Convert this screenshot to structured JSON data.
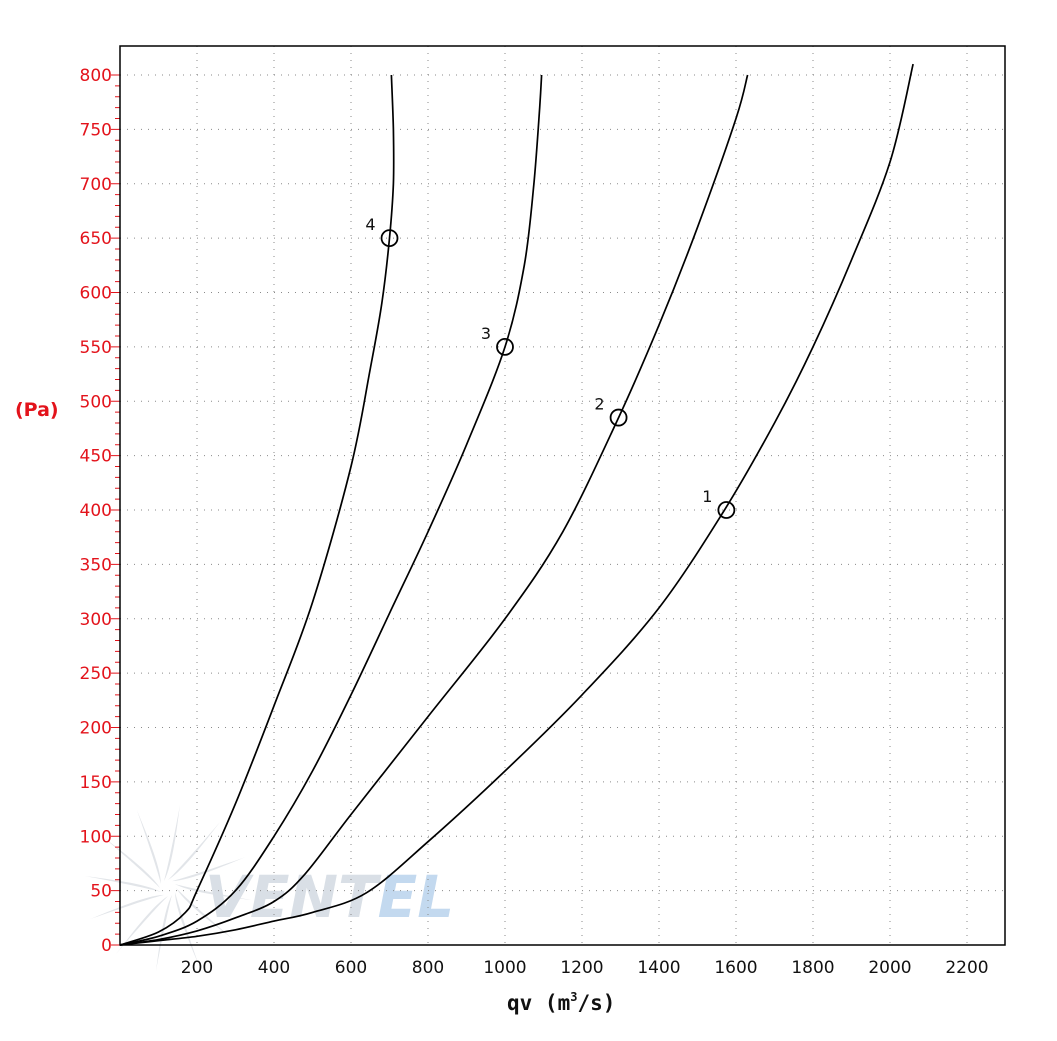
{
  "chart_data": {
    "type": "line",
    "title": "",
    "xlabel_prefix": "qv (m",
    "xlabel_sup": "3",
    "xlabel_suffix": "/s)",
    "ylabel": "(Pa)",
    "xlim": [
      0,
      2300
    ],
    "ylim": [
      0,
      820
    ],
    "xticks": [
      200,
      400,
      600,
      800,
      1000,
      1200,
      1400,
      1600,
      1800,
      2000,
      2200
    ],
    "yticks": [
      0,
      50,
      100,
      150,
      200,
      250,
      300,
      350,
      400,
      450,
      500,
      550,
      600,
      650,
      700,
      750,
      800
    ],
    "grid": true,
    "axis_color": "#e3131b",
    "watermark": {
      "part1": "VENT",
      "part2": "EL",
      "color1": "#d9dfe6",
      "color2": "#c3d9ef"
    },
    "series": [
      {
        "name": "1",
        "points": [
          [
            0,
            0
          ],
          [
            100,
            4
          ],
          [
            200,
            8
          ],
          [
            300,
            14
          ],
          [
            400,
            22
          ],
          [
            500,
            30
          ],
          [
            640,
            48
          ],
          [
            800,
            95
          ],
          [
            1000,
            160
          ],
          [
            1200,
            230
          ],
          [
            1400,
            310
          ],
          [
            1570,
            400
          ],
          [
            1700,
            480
          ],
          [
            1800,
            550
          ],
          [
            1900,
            630
          ],
          [
            2000,
            720
          ],
          [
            2060,
            810
          ]
        ],
        "operating_point": [
          1575,
          400
        ]
      },
      {
        "name": "2",
        "points": [
          [
            0,
            0
          ],
          [
            100,
            5
          ],
          [
            200,
            13
          ],
          [
            300,
            25
          ],
          [
            400,
            40
          ],
          [
            480,
            65
          ],
          [
            600,
            120
          ],
          [
            800,
            210
          ],
          [
            1000,
            300
          ],
          [
            1150,
            380
          ],
          [
            1295,
            485
          ],
          [
            1400,
            570
          ],
          [
            1500,
            660
          ],
          [
            1600,
            760
          ],
          [
            1630,
            800
          ]
        ],
        "operating_point": [
          1295,
          485
        ]
      },
      {
        "name": "3",
        "points": [
          [
            0,
            0
          ],
          [
            100,
            8
          ],
          [
            200,
            22
          ],
          [
            300,
            50
          ],
          [
            400,
            100
          ],
          [
            500,
            160
          ],
          [
            600,
            230
          ],
          [
            700,
            305
          ],
          [
            800,
            380
          ],
          [
            900,
            460
          ],
          [
            1000,
            550
          ],
          [
            1050,
            625
          ],
          [
            1075,
            700
          ],
          [
            1090,
            770
          ],
          [
            1095,
            800
          ]
        ],
        "operating_point": [
          1000,
          550
        ]
      },
      {
        "name": "4",
        "points": [
          [
            0,
            0
          ],
          [
            100,
            12
          ],
          [
            170,
            30
          ],
          [
            200,
            50
          ],
          [
            300,
            130
          ],
          [
            400,
            220
          ],
          [
            500,
            315
          ],
          [
            600,
            440
          ],
          [
            650,
            530
          ],
          [
            680,
            590
          ],
          [
            700,
            650
          ],
          [
            710,
            700
          ],
          [
            710,
            750
          ],
          [
            705,
            800
          ]
        ],
        "operating_point": [
          700,
          650
        ]
      }
    ]
  }
}
